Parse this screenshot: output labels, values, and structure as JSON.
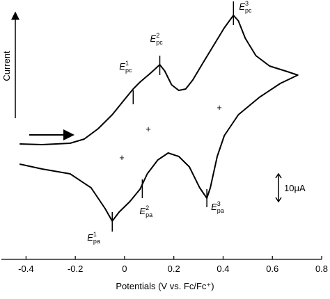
{
  "chart_data": {
    "type": "line",
    "x_label": "Potentials (V vs. Fc/Fc⁺)",
    "y_label": "Current",
    "color": "#000000",
    "xlim": [
      -0.5,
      0.8
    ],
    "xticks": [
      -0.4,
      -0.2,
      0,
      0.2,
      0.4,
      0.6,
      0.8
    ],
    "ylim": [
      -41.25,
      52
    ],
    "x": [
      -0.426,
      -0.335,
      -0.221,
      -0.164,
      -0.107,
      -0.05,
      0.007,
      0.035,
      0.063,
      0.106,
      0.143,
      0.163,
      0.191,
      0.22,
      0.248,
      0.277,
      0.319,
      0.362,
      0.405,
      0.442,
      0.462,
      0.49,
      0.533,
      0.589,
      0.661,
      0.703,
      0.632,
      0.547,
      0.462,
      0.405,
      0.376,
      0.348,
      0.334,
      0.305,
      0.263,
      0.22,
      0.177,
      0.135,
      0.092,
      0.063,
      0.021,
      -0.022,
      -0.05,
      -0.079,
      -0.136,
      -0.221,
      -0.335,
      -0.426
    ],
    "values": [
      0.25,
      0,
      0.5,
      2,
      5.75,
      10.75,
      17,
      20,
      22.5,
      25.75,
      28.75,
      26.5,
      21.5,
      19.5,
      20,
      23.25,
      29.5,
      35.75,
      42,
      46.5,
      44.5,
      38.25,
      32,
      28.25,
      26.25,
      25,
      22,
      17,
      10.75,
      3.25,
      -4.25,
      -15.5,
      -19.25,
      -15.5,
      -8,
      -4.25,
      -3,
      -5.5,
      -10.5,
      -16,
      -20.5,
      -24.25,
      -27.5,
      -23,
      -15.5,
      -10.5,
      -8.75,
      -7
    ],
    "annotations": [
      {
        "x": 0.035,
        "symbol": "E",
        "sup": "1",
        "sub": "pc"
      },
      {
        "x": 0.143,
        "symbol": "E",
        "sup": "2",
        "sub": "pc"
      },
      {
        "x": 0.442,
        "symbol": "E",
        "sup": "3",
        "sub": "pc"
      },
      {
        "x": -0.05,
        "symbol": "E",
        "sup": "1",
        "sub": "pa"
      },
      {
        "x": 0.072,
        "symbol": "E",
        "sup": "2",
        "sub": "pa"
      },
      {
        "x": 0.334,
        "symbol": "E",
        "sup": "3",
        "sub": "pa"
      }
    ],
    "scale_bar": {
      "value": 10,
      "label": "10μA"
    }
  }
}
